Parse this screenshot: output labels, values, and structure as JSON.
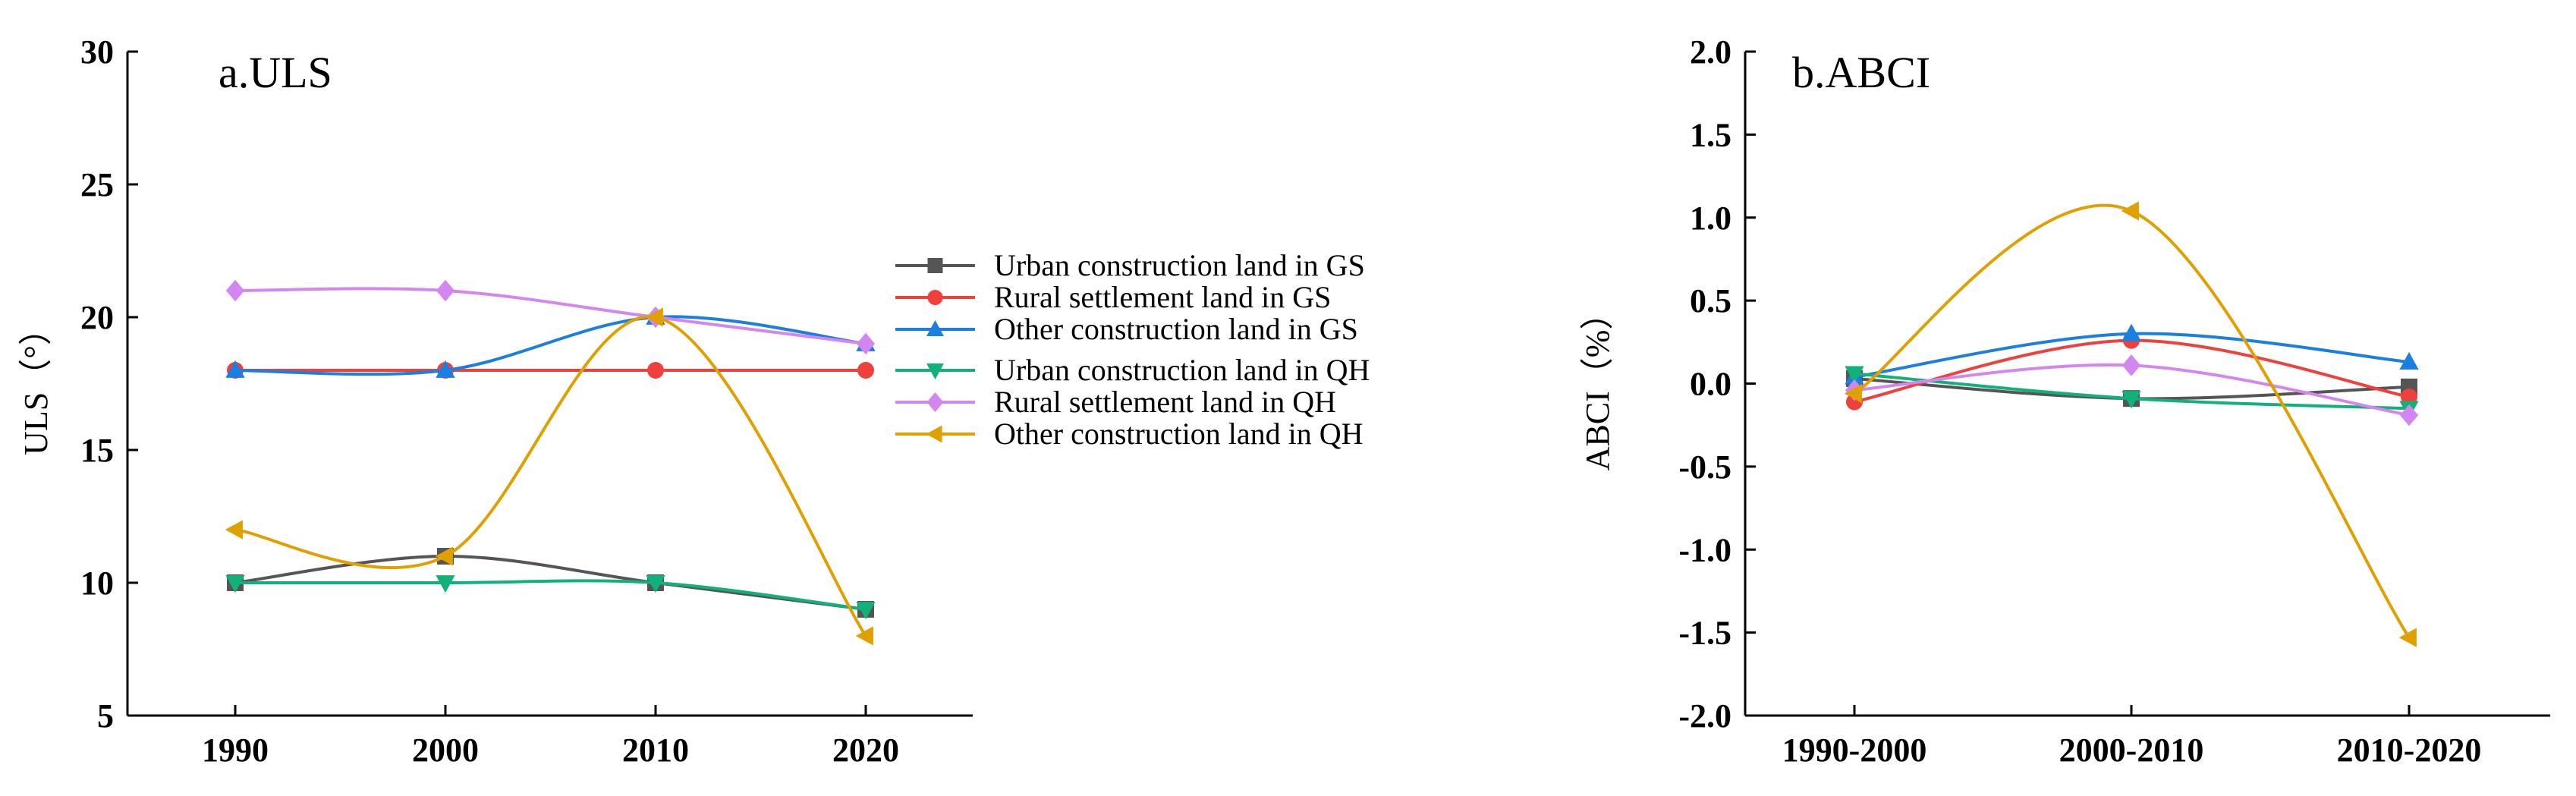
{
  "chart_data": [
    {
      "type": "line",
      "title": "a.ULS",
      "xlabel": "",
      "ylabel": "ULS（°）",
      "categories": [
        "1990",
        "2000",
        "2010",
        "2020"
      ],
      "ylim": [
        5,
        30
      ],
      "yticks": [
        "5",
        "10",
        "15",
        "20",
        "25",
        "30"
      ],
      "series": [
        {
          "name": "Urban construction land in GS",
          "values": [
            10,
            11,
            10,
            9
          ],
          "color": "#555555",
          "marker": "square"
        },
        {
          "name": "Rural settlement land in GS",
          "values": [
            18,
            18,
            18,
            18
          ],
          "color": "#f0403c",
          "marker": "circle"
        },
        {
          "name": "Other construction land in GS",
          "values": [
            18,
            18,
            20,
            19
          ],
          "color": "#1a7fe0",
          "marker": "triangle-up"
        },
        {
          "name": "Urban construction land in QH",
          "values": [
            10,
            10,
            10,
            9
          ],
          "color": "#10b27a",
          "marker": "triangle-down"
        },
        {
          "name": "Rural settlement land in QH",
          "values": [
            21,
            21,
            20,
            19
          ],
          "color": "#d486f0",
          "marker": "diamond"
        },
        {
          "name": "Other construction land in QH",
          "values": [
            12,
            11,
            20,
            8
          ],
          "color": "#e0a000",
          "marker": "triangle-left"
        }
      ]
    },
    {
      "type": "line",
      "title": "b.ABCI",
      "xlabel": "",
      "ylabel": "ABCI（%）",
      "categories": [
        "1990-2000",
        "2000-2010",
        "2010-2020"
      ],
      "ylim": [
        -2.0,
        2.0
      ],
      "yticks": [
        "-2.0",
        "-1.5",
        "-1.0",
        "-0.5",
        "0.0",
        "0.5",
        "1.0",
        "1.5",
        "2.0"
      ],
      "series": [
        {
          "name": "Urban construction land in GS",
          "values": [
            0.03,
            -0.09,
            -0.02
          ],
          "color": "#555555",
          "marker": "square"
        },
        {
          "name": "Rural settlement land in GS",
          "values": [
            -0.11,
            0.26,
            -0.08
          ],
          "color": "#f0403c",
          "marker": "circle"
        },
        {
          "name": "Other construction land in GS",
          "values": [
            0.04,
            0.3,
            0.13
          ],
          "color": "#1a7fe0",
          "marker": "triangle-up"
        },
        {
          "name": "Urban construction land in QH",
          "values": [
            0.06,
            -0.09,
            -0.15
          ],
          "color": "#10b27a",
          "marker": "triangle-down"
        },
        {
          "name": "Rural settlement land in QH",
          "values": [
            -0.04,
            0.11,
            -0.19
          ],
          "color": "#d486f0",
          "marker": "diamond"
        },
        {
          "name": "Other construction land in QH",
          "values": [
            -0.06,
            1.04,
            -1.53
          ],
          "color": "#e0a000",
          "marker": "triangle-left"
        }
      ]
    }
  ]
}
